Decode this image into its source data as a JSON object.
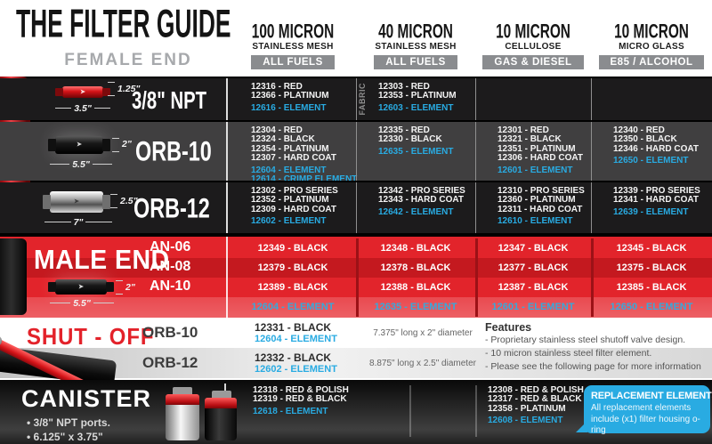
{
  "header": {
    "title": "THE FILTER GUIDE",
    "female_label": "FEMALE END",
    "columns": [
      {
        "micron": "100 MICRON",
        "media": "STAINLESS MESH",
        "fuel": "ALL FUELS"
      },
      {
        "micron": "40 MICRON",
        "media": "STAINLESS MESH",
        "fuel": "ALL FUELS"
      },
      {
        "micron": "10 MICRON",
        "media": "CELLULOSE",
        "fuel": "GAS & DIESEL"
      },
      {
        "micron": "10 MICRON",
        "media": "MICRO GLASS",
        "fuel": "E85 / ALCOHOL"
      }
    ]
  },
  "female": {
    "rows": [
      {
        "label": "3/8\" NPT",
        "dim_h": "1.25\"",
        "dim_w": "3.5\"",
        "cells": [
          {
            "parts": [
              "12316 - RED",
              "12366 - PLATINUM"
            ],
            "elements": [
              "12616 - ELEMENT"
            ]
          },
          {
            "note": "FABRIC",
            "parts": [
              "12303 - RED",
              "12353 - PLATINUM"
            ],
            "elements": [
              "12603 - ELEMENT"
            ]
          },
          {
            "parts": [],
            "elements": []
          },
          {
            "parts": [],
            "elements": []
          }
        ]
      },
      {
        "label": "ORB-10",
        "dim_h": "2\"",
        "dim_w": "5.5\"",
        "cells": [
          {
            "parts": [
              "12304 - RED",
              "12324 - BLACK",
              "12354 - PLATINUM",
              "12307 - HARD COAT"
            ],
            "elements": [
              "12604 - ELEMENT",
              "12614 - CRIMP ELEMENT"
            ]
          },
          {
            "parts": [
              "12335 - RED",
              "12330 - BLACK"
            ],
            "elements": [
              "12635 - ELEMENT"
            ]
          },
          {
            "parts": [
              "12301 - RED",
              "12321 - BLACK",
              "12351 - PLATINUM",
              "12306 - HARD COAT"
            ],
            "elements": [
              "12601 - ELEMENT"
            ]
          },
          {
            "parts": [
              "12340 - RED",
              "12350 - BLACK",
              "12346 - HARD COAT"
            ],
            "elements": [
              "12650 - ELEMENT"
            ]
          }
        ]
      },
      {
        "label": "ORB-12",
        "dim_h": "2.5\"",
        "dim_w": "7\"",
        "cells": [
          {
            "parts": [
              "12302 - PRO SERIES",
              "12352 - PLATINUM",
              "12309 - HARD COAT"
            ],
            "elements": [
              "12602 - ELEMENT"
            ]
          },
          {
            "parts": [
              "12342 - PRO SERIES",
              "12343 - HARD COAT"
            ],
            "elements": [
              "12642 - ELEMENT"
            ]
          },
          {
            "parts": [
              "12310 - PRO SERIES",
              "12360 - PLATINUM",
              "12311 - HARD COAT"
            ],
            "elements": [
              "12610 - ELEMENT"
            ]
          },
          {
            "parts": [
              "12339 - PRO SERIES",
              "12341 - HARD COAT"
            ],
            "elements": [
              "12639 - ELEMENT"
            ]
          }
        ]
      }
    ]
  },
  "male": {
    "label": "MALE END",
    "dim_h": "2\"",
    "dim_w": "5.5\"",
    "rows": [
      {
        "label": "AN-06",
        "cells": [
          "12349 - BLACK",
          "12348 - BLACK",
          "12347 - BLACK",
          "12345 - BLACK"
        ]
      },
      {
        "label": "AN-08",
        "cells": [
          "12379 - BLACK",
          "12378 - BLACK",
          "12377 - BLACK",
          "12375 - BLACK"
        ]
      },
      {
        "label": "AN-10",
        "cells": [
          "12389 - BLACK",
          "12388 - BLACK",
          "12387 - BLACK",
          "12385 - BLACK"
        ]
      }
    ],
    "elements": [
      "12604 - ELEMENT",
      "12635 - ELEMENT",
      "12601 - ELEMENT",
      "12650 - ELEMENT"
    ]
  },
  "shutoff": {
    "label": "SHUT - OFF",
    "rows": [
      {
        "label": "ORB-10",
        "part": "12331 - BLACK",
        "element": "12604 - ELEMENT",
        "size": "7.375\" long x 2\" diameter"
      },
      {
        "label": "ORB-12",
        "part": "12332 - BLACK",
        "element": "12602 - ELEMENT",
        "size": "8.875\" long x 2.5\" diameter"
      }
    ],
    "features": {
      "title": "Features",
      "items": [
        "- Proprietary stainless steel shutoff valve design.",
        "- 10 micron stainless steel filter element.",
        "- Please see the following page for more information"
      ]
    }
  },
  "canister": {
    "label": "CANISTER",
    "bullets": [
      "• 3/8\" NPT ports.",
      "• 6.125\" x 3.75\""
    ],
    "cells": [
      {
        "parts": [
          "12318 - RED & POLISH",
          "12319 - RED & BLACK"
        ],
        "elements": [
          "12618 - ELEMENT"
        ]
      },
      {
        "parts": [],
        "elements": []
      },
      {
        "parts": [
          "12308 - RED & POLISH",
          "12317 - RED & BLACK",
          "12358 - PLATINUM"
        ],
        "elements": [
          "12608 - ELEMENT"
        ]
      },
      {
        "parts": [],
        "elements": []
      }
    ],
    "callout": {
      "title": "REPLACEMENT ELEMENTS",
      "body": "All replacement elements include (x1) filter housing o-ring"
    }
  },
  "colors": {
    "element_blue": "#29abe2",
    "brand_red": "#e2242b",
    "dark_red": "#c4191f",
    "callout_blue": "#29abe2"
  }
}
